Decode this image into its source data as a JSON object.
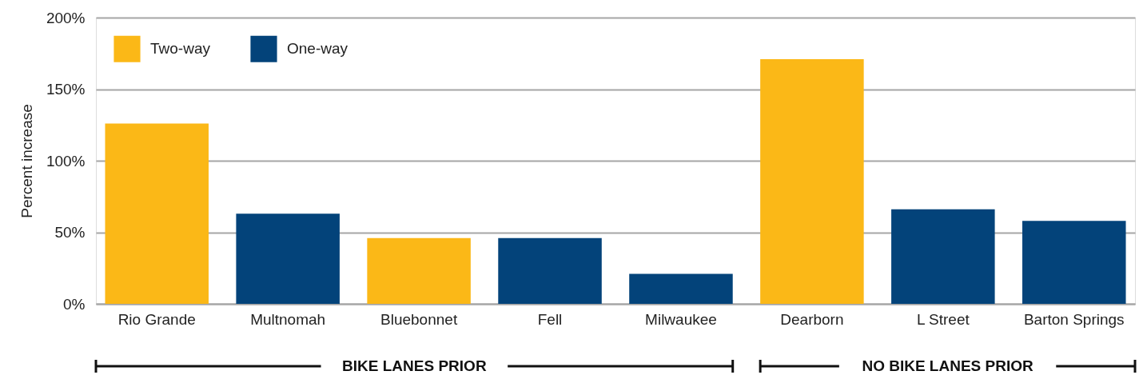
{
  "chart_data": {
    "type": "bar",
    "ylabel": "Percent increase",
    "categories": [
      "Rio Grande",
      "Multnomah",
      "Bluebonnet",
      "Fell",
      "Milwaukee",
      "Dearborn",
      "L Street",
      "Barton Springs"
    ],
    "series": [
      {
        "name": "Two-way",
        "color": "#fbb817",
        "values": [
          126,
          null,
          46,
          null,
          null,
          171,
          null,
          null
        ]
      },
      {
        "name": "One-way",
        "color": "#03437a",
        "values": [
          null,
          63,
          null,
          46,
          21,
          null,
          66,
          58
        ]
      }
    ],
    "ylim": [
      0,
      200
    ],
    "yticks": [
      {
        "value": 0,
        "label": "0%"
      },
      {
        "value": 50,
        "label": "50%"
      },
      {
        "value": 100,
        "label": "100%"
      },
      {
        "value": 150,
        "label": "150%"
      },
      {
        "value": 200,
        "label": "200%"
      }
    ],
    "grid": "y",
    "legend": "top left",
    "annotations": [
      "BIKE LANES PRIOR",
      "NO BIKE LANES PRIOR"
    ]
  }
}
